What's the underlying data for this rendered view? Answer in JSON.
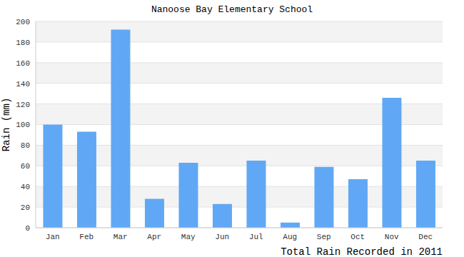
{
  "chart_data": {
    "type": "bar",
    "title": "Nanoose Bay Elementary School",
    "ylabel": "Rain (mm)",
    "xlabel": "Total Rain Recorded in 2011",
    "categories": [
      "Jan",
      "Feb",
      "Mar",
      "Apr",
      "May",
      "Jun",
      "Jul",
      "Aug",
      "Sep",
      "Oct",
      "Nov",
      "Dec"
    ],
    "values": [
      100,
      93,
      192,
      28,
      63,
      23,
      65,
      5,
      59,
      47,
      126,
      65
    ],
    "color": "#60a8f5",
    "ylim": [
      0,
      200
    ],
    "yticks": [
      0,
      20,
      40,
      60,
      80,
      100,
      120,
      140,
      160,
      180,
      200
    ],
    "grid": true
  }
}
